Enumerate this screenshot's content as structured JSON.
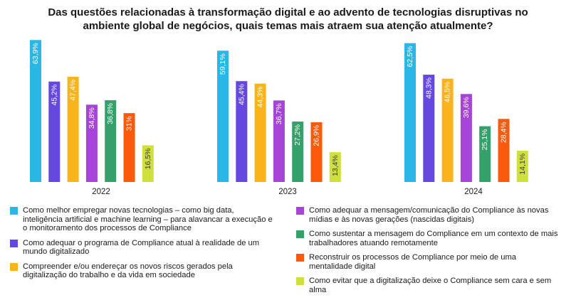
{
  "title_lines": [
    "Das questões relacionadas à transformação digital e ao advento de tecnologias disruptivas no",
    "ambiente global de negócios, quais temas mais atraem sua atenção atualmente?"
  ],
  "colors": [
    "#2ab7e8",
    "#6548e0",
    "#fbb31c",
    "#a544d6",
    "#34a06a",
    "#fb5a0c",
    "#cfe03c"
  ],
  "chart_data": {
    "type": "bar",
    "title": "Das questões relacionadas à transformação digital e ao advento de tecnologias disruptivas no ambiente global de negócios, quais temas mais atraem sua atenção atualmente?",
    "categories": [
      "2022",
      "2023",
      "2024"
    ],
    "value_labels": [
      [
        "63,9%",
        "45,2%",
        "47,4%",
        "34,8%",
        "36,8%",
        "31%",
        "16,5%"
      ],
      [
        "59,1%",
        "45,4%",
        "44,3%",
        "36,7%",
        "27,2%",
        "26,9%",
        "13,4%"
      ],
      [
        "62,5%",
        "48,3%",
        "46,5%",
        "39,6%",
        "25,1%",
        "28,4%",
        "14,1%"
      ]
    ],
    "series": [
      {
        "name": "Como melhor empregar novas tecnologias – como big data, inteligência artificial e machine learning – para alavancar a execução e o monitoramento dos processos de Compliance",
        "values": [
          63.9,
          59.1,
          62.5
        ]
      },
      {
        "name": "Como adequar o programa de Compliance atual à realidade de um mundo digitalizado",
        "values": [
          45.2,
          45.4,
          48.3
        ]
      },
      {
        "name": "Compreender e/ou endereçar os novos riscos gerados pela digitalização do trabalho e da vida em sociedade",
        "values": [
          47.4,
          44.3,
          46.5
        ]
      },
      {
        "name": "Como adequar a mensagem/comunicação do Compliance às novas mídias e às novas gerações (nascidas digitais)",
        "values": [
          34.8,
          36.7,
          39.6
        ]
      },
      {
        "name": "Como sustentar a mensagem do Compliance em um contexto de mais trabalhadores atuando remotamente",
        "values": [
          36.8,
          27.2,
          25.1
        ]
      },
      {
        "name": "Reconstruir os processos de Compliance por meio de uma mentalidade digital",
        "values": [
          31,
          26.9,
          28.4
        ]
      },
      {
        "name": "Como evitar que a digitalização deixe o Compliance sem cara e sem alma",
        "values": [
          16.5,
          13.4,
          14.1
        ]
      }
    ],
    "ylim": [
      0,
      70
    ],
    "grid": false,
    "legend_position": "bottom"
  },
  "legend": {
    "left": [
      0,
      1,
      2
    ],
    "right": [
      3,
      4,
      5,
      6
    ]
  }
}
